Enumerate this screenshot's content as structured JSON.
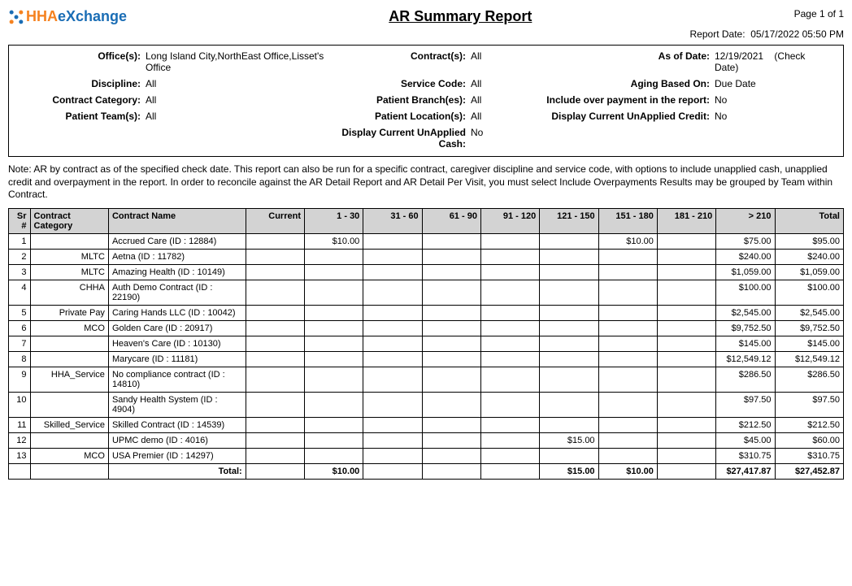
{
  "logo": {
    "text_hha": "HHA",
    "text_exchange": "eXchange",
    "color_orange": "#f58220",
    "color_blue": "#1a6db5"
  },
  "report_title": "AR Summary Report",
  "page_info": "Page  1 of 1",
  "report_date_label": "Report Date:",
  "report_date_value": "05/17/2022 05:50 PM",
  "params": {
    "office_label": "Office(s):",
    "office_value": "Long Island City,NorthEast Office,Lisset's Office",
    "contract_label": "Contract(s):",
    "contract_value": "All",
    "asof_label": "As of Date:",
    "asof_value": "12/19/2021",
    "asof_extra": "(Check Date)",
    "discipline_label": "Discipline:",
    "discipline_value": "All",
    "servicecode_label": "Service Code:",
    "servicecode_value": "All",
    "aging_label": "Aging Based On:",
    "aging_value": "Due Date",
    "cat_label": "Contract Category:",
    "cat_value": "All",
    "branch_label": "Patient Branch(es):",
    "branch_value": "All",
    "overpay_label": "Include over payment in the report:",
    "overpay_value": "No",
    "team_label": "Patient Team(s):",
    "team_value": "All",
    "location_label": "Patient Location(s):",
    "location_value": "All",
    "credit_label": "Display Current UnApplied Credit:",
    "credit_value": "No",
    "cash_label": "Display Current UnApplied Cash:",
    "cash_value": "No"
  },
  "note": "Note: AR by contract as of the specified check date. This report can also be run for a specific contract, caregiver discipline and service code, with options to include unapplied cash, unapplied credit and overpayment in the report. In order to reconcile against the AR Detail Report and AR Detail Per Visit, you must select Include Overpayments Results may be grouped by Team within Contract.",
  "table": {
    "headers": [
      "Sr #",
      "Contract Category",
      "Contract Name",
      "Current",
      "1 - 30",
      "31 - 60",
      "61 - 90",
      "91 - 120",
      "121 - 150",
      "151 - 180",
      "181 - 210",
      "> 210",
      "Total"
    ],
    "rows": [
      {
        "sr": "1",
        "cat": "",
        "name": "Accrued Care (ID : 12884)",
        "current": "",
        "b1": "$10.00",
        "b2": "",
        "b3": "",
        "b4": "",
        "b5": "",
        "b6": "$10.00",
        "b7": "",
        "b8": "$75.00",
        "total": "$95.00"
      },
      {
        "sr": "2",
        "cat": "MLTC",
        "name": "Aetna (ID : 11782)",
        "current": "",
        "b1": "",
        "b2": "",
        "b3": "",
        "b4": "",
        "b5": "",
        "b6": "",
        "b7": "",
        "b8": "$240.00",
        "total": "$240.00"
      },
      {
        "sr": "3",
        "cat": "MLTC",
        "name": "Amazing Health (ID : 10149)",
        "current": "",
        "b1": "",
        "b2": "",
        "b3": "",
        "b4": "",
        "b5": "",
        "b6": "",
        "b7": "",
        "b8": "$1,059.00",
        "total": "$1,059.00"
      },
      {
        "sr": "4",
        "cat": "CHHA",
        "name": "Auth Demo Contract (ID : 22190)",
        "current": "",
        "b1": "",
        "b2": "",
        "b3": "",
        "b4": "",
        "b5": "",
        "b6": "",
        "b7": "",
        "b8": "$100.00",
        "total": "$100.00"
      },
      {
        "sr": "5",
        "cat": "Private Pay",
        "name": "Caring Hands LLC (ID : 10042)",
        "current": "",
        "b1": "",
        "b2": "",
        "b3": "",
        "b4": "",
        "b5": "",
        "b6": "",
        "b7": "",
        "b8": "$2,545.00",
        "total": "$2,545.00"
      },
      {
        "sr": "6",
        "cat": "MCO",
        "name": "Golden Care (ID : 20917)",
        "current": "",
        "b1": "",
        "b2": "",
        "b3": "",
        "b4": "",
        "b5": "",
        "b6": "",
        "b7": "",
        "b8": "$9,752.50",
        "total": "$9,752.50"
      },
      {
        "sr": "7",
        "cat": "",
        "name": "Heaven's Care (ID : 10130)",
        "current": "",
        "b1": "",
        "b2": "",
        "b3": "",
        "b4": "",
        "b5": "",
        "b6": "",
        "b7": "",
        "b8": "$145.00",
        "total": "$145.00"
      },
      {
        "sr": "8",
        "cat": "",
        "name": "Marycare  (ID : 11181)",
        "current": "",
        "b1": "",
        "b2": "",
        "b3": "",
        "b4": "",
        "b5": "",
        "b6": "",
        "b7": "",
        "b8": "$12,549.12",
        "total": "$12,549.12"
      },
      {
        "sr": "9",
        "cat": "HHA_Service",
        "name": "No compliance contract (ID : 14810)",
        "current": "",
        "b1": "",
        "b2": "",
        "b3": "",
        "b4": "",
        "b5": "",
        "b6": "",
        "b7": "",
        "b8": "$286.50",
        "total": "$286.50"
      },
      {
        "sr": "10",
        "cat": "",
        "name": "Sandy Health System (ID : 4904)",
        "current": "",
        "b1": "",
        "b2": "",
        "b3": "",
        "b4": "",
        "b5": "",
        "b6": "",
        "b7": "",
        "b8": "$97.50",
        "total": "$97.50"
      },
      {
        "sr": "11",
        "cat": "Skilled_Service",
        "name": "Skilled Contract (ID : 14539)",
        "current": "",
        "b1": "",
        "b2": "",
        "b3": "",
        "b4": "",
        "b5": "",
        "b6": "",
        "b7": "",
        "b8": "$212.50",
        "total": "$212.50"
      },
      {
        "sr": "12",
        "cat": "",
        "name": "UPMC demo (ID : 4016)",
        "current": "",
        "b1": "",
        "b2": "",
        "b3": "",
        "b4": "",
        "b5": "$15.00",
        "b6": "",
        "b7": "",
        "b8": "$45.00",
        "total": "$60.00"
      },
      {
        "sr": "13",
        "cat": "MCO",
        "name": "USA Premier (ID : 14297)",
        "current": "",
        "b1": "",
        "b2": "",
        "b3": "",
        "b4": "",
        "b5": "",
        "b6": "",
        "b7": "",
        "b8": "$310.75",
        "total": "$310.75"
      }
    ],
    "total_row": {
      "label": "Total:",
      "current": "",
      "b1": "$10.00",
      "b2": "",
      "b3": "",
      "b4": "",
      "b5": "$15.00",
      "b6": "$10.00",
      "b7": "",
      "b8": "$27,417.87",
      "total": "$27,452.87"
    }
  }
}
